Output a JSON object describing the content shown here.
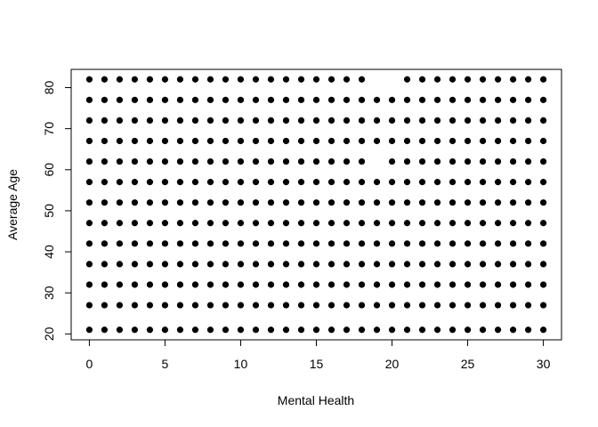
{
  "chart_data": {
    "type": "scatter",
    "x_label": "Mental Health",
    "y_label": "Average Age",
    "xlim": [
      -1.2,
      31.2
    ],
    "ylim": [
      18.56,
      84.44
    ],
    "xticks": [
      0,
      5,
      10,
      15,
      20,
      25,
      30
    ],
    "yticks": [
      20,
      30,
      40,
      50,
      60,
      70,
      80
    ],
    "color": "#000000",
    "x": [
      0,
      1,
      2,
      3,
      4,
      5,
      6,
      7,
      8,
      9,
      10,
      11,
      12,
      13,
      14,
      15,
      16,
      17,
      18,
      19,
      20,
      21,
      22,
      23,
      24,
      25,
      26,
      27,
      28,
      29,
      30,
      0,
      1,
      2,
      3,
      4,
      5,
      6,
      7,
      8,
      9,
      10,
      11,
      12,
      13,
      14,
      15,
      16,
      17,
      18,
      19,
      20,
      21,
      22,
      23,
      24,
      25,
      26,
      27,
      28,
      29,
      30,
      0,
      1,
      2,
      3,
      4,
      5,
      6,
      7,
      8,
      9,
      10,
      11,
      12,
      13,
      14,
      15,
      16,
      17,
      18,
      19,
      20,
      21,
      22,
      23,
      24,
      25,
      26,
      27,
      28,
      29,
      30,
      0,
      1,
      2,
      3,
      4,
      5,
      6,
      7,
      8,
      9,
      10,
      11,
      12,
      13,
      14,
      15,
      16,
      17,
      18,
      19,
      20,
      21,
      22,
      23,
      24,
      25,
      26,
      27,
      28,
      29,
      30,
      0,
      1,
      2,
      3,
      4,
      5,
      6,
      7,
      8,
      9,
      10,
      11,
      12,
      13,
      14,
      15,
      16,
      17,
      18,
      19,
      20,
      21,
      22,
      23,
      24,
      25,
      26,
      27,
      28,
      29,
      30,
      0,
      1,
      2,
      3,
      4,
      5,
      6,
      7,
      8,
      9,
      10,
      11,
      12,
      13,
      14,
      15,
      16,
      17,
      18,
      19,
      20,
      21,
      22,
      23,
      24,
      25,
      26,
      27,
      28,
      29,
      30,
      0,
      1,
      2,
      3,
      4,
      5,
      6,
      7,
      8,
      9,
      10,
      11,
      12,
      13,
      14,
      15,
      16,
      17,
      18,
      19,
      20,
      21,
      22,
      23,
      24,
      25,
      26,
      27,
      28,
      29,
      30,
      0,
      1,
      2,
      3,
      4,
      5,
      6,
      7,
      8,
      9,
      10,
      11,
      12,
      13,
      14,
      15,
      16,
      17,
      18,
      19,
      20,
      21,
      22,
      23,
      24,
      25,
      26,
      27,
      28,
      29,
      30,
      0,
      1,
      2,
      3,
      4,
      5,
      6,
      7,
      8,
      9,
      10,
      11,
      12,
      13,
      14,
      15,
      16,
      17,
      18,
      20,
      21,
      22,
      23,
      24,
      25,
      26,
      27,
      28,
      29,
      30,
      0,
      1,
      2,
      3,
      4,
      5,
      6,
      7,
      8,
      9,
      10,
      11,
      12,
      13,
      14,
      15,
      16,
      17,
      18,
      19,
      20,
      21,
      22,
      23,
      24,
      25,
      26,
      27,
      28,
      29,
      30,
      0,
      1,
      2,
      3,
      4,
      5,
      6,
      7,
      8,
      9,
      10,
      11,
      12,
      13,
      14,
      15,
      16,
      17,
      18,
      19,
      20,
      21,
      22,
      23,
      24,
      25,
      26,
      27,
      28,
      29,
      30,
      0,
      1,
      2,
      3,
      4,
      5,
      6,
      7,
      8,
      9,
      10,
      11,
      12,
      13,
      14,
      15,
      16,
      17,
      18,
      19,
      20,
      21,
      22,
      23,
      24,
      25,
      26,
      27,
      28,
      29,
      30,
      0,
      1,
      2,
      3,
      4,
      5,
      6,
      7,
      8,
      9,
      10,
      11,
      12,
      13,
      14,
      15,
      16,
      17,
      18,
      21,
      22,
      23,
      24,
      25,
      26,
      27,
      28,
      29,
      30
    ],
    "values": [
      21,
      21,
      21,
      21,
      21,
      21,
      21,
      21,
      21,
      21,
      21,
      21,
      21,
      21,
      21,
      21,
      21,
      21,
      21,
      21,
      21,
      21,
      21,
      21,
      21,
      21,
      21,
      21,
      21,
      21,
      21,
      27,
      27,
      27,
      27,
      27,
      27,
      27,
      27,
      27,
      27,
      27,
      27,
      27,
      27,
      27,
      27,
      27,
      27,
      27,
      27,
      27,
      27,
      27,
      27,
      27,
      27,
      27,
      27,
      27,
      27,
      27,
      32,
      32,
      32,
      32,
      32,
      32,
      32,
      32,
      32,
      32,
      32,
      32,
      32,
      32,
      32,
      32,
      32,
      32,
      32,
      32,
      32,
      32,
      32,
      32,
      32,
      32,
      32,
      32,
      32,
      32,
      32,
      37,
      37,
      37,
      37,
      37,
      37,
      37,
      37,
      37,
      37,
      37,
      37,
      37,
      37,
      37,
      37,
      37,
      37,
      37,
      37,
      37,
      37,
      37,
      37,
      37,
      37,
      37,
      37,
      37,
      37,
      37,
      42,
      42,
      42,
      42,
      42,
      42,
      42,
      42,
      42,
      42,
      42,
      42,
      42,
      42,
      42,
      42,
      42,
      42,
      42,
      42,
      42,
      42,
      42,
      42,
      42,
      42,
      42,
      42,
      42,
      42,
      42,
      47,
      47,
      47,
      47,
      47,
      47,
      47,
      47,
      47,
      47,
      47,
      47,
      47,
      47,
      47,
      47,
      47,
      47,
      47,
      47,
      47,
      47,
      47,
      47,
      47,
      47,
      47,
      47,
      47,
      47,
      47,
      52,
      52,
      52,
      52,
      52,
      52,
      52,
      52,
      52,
      52,
      52,
      52,
      52,
      52,
      52,
      52,
      52,
      52,
      52,
      52,
      52,
      52,
      52,
      52,
      52,
      52,
      52,
      52,
      52,
      52,
      52,
      57,
      57,
      57,
      57,
      57,
      57,
      57,
      57,
      57,
      57,
      57,
      57,
      57,
      57,
      57,
      57,
      57,
      57,
      57,
      57,
      57,
      57,
      57,
      57,
      57,
      57,
      57,
      57,
      57,
      57,
      57,
      62,
      62,
      62,
      62,
      62,
      62,
      62,
      62,
      62,
      62,
      62,
      62,
      62,
      62,
      62,
      62,
      62,
      62,
      62,
      62,
      62,
      62,
      62,
      62,
      62,
      62,
      62,
      62,
      62,
      62,
      67,
      67,
      67,
      67,
      67,
      67,
      67,
      67,
      67,
      67,
      67,
      67,
      67,
      67,
      67,
      67,
      67,
      67,
      67,
      67,
      67,
      67,
      67,
      67,
      67,
      67,
      67,
      67,
      67,
      67,
      67,
      72,
      72,
      72,
      72,
      72,
      72,
      72,
      72,
      72,
      72,
      72,
      72,
      72,
      72,
      72,
      72,
      72,
      72,
      72,
      72,
      72,
      72,
      72,
      72,
      72,
      72,
      72,
      72,
      72,
      72,
      72,
      77,
      77,
      77,
      77,
      77,
      77,
      77,
      77,
      77,
      77,
      77,
      77,
      77,
      77,
      77,
      77,
      77,
      77,
      77,
      77,
      77,
      77,
      77,
      77,
      77,
      77,
      77,
      77,
      77,
      77,
      77,
      82,
      82,
      82,
      82,
      82,
      82,
      82,
      82,
      82,
      82,
      82,
      82,
      82,
      82,
      82,
      82,
      82,
      82,
      82,
      82,
      82,
      82,
      82,
      82,
      82,
      82,
      82,
      82,
      82
    ]
  }
}
